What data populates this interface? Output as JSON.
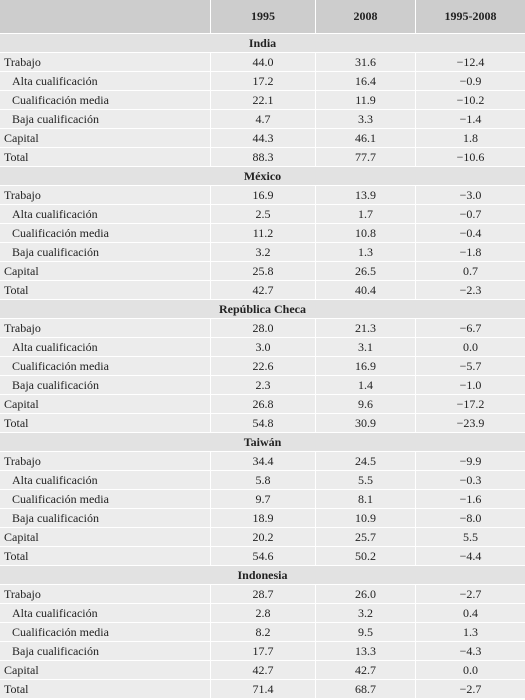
{
  "table": {
    "columns": [
      "1995",
      "2008",
      "1995-2008"
    ],
    "sections": [
      {
        "title": "India",
        "rows": [
          {
            "label": "Trabajo",
            "values": [
              "44.0",
              "31.6",
              "−12.4"
            ]
          },
          {
            "label": "Alta cualificación",
            "values": [
              "17.2",
              "16.4",
              "−0.9"
            ]
          },
          {
            "label": "Cualificación media",
            "values": [
              "22.1",
              "11.9",
              "−10.2"
            ]
          },
          {
            "label": "Baja cualificación",
            "values": [
              "4.7",
              "3.3",
              "−1.4"
            ]
          },
          {
            "label": "Capital",
            "values": [
              "44.3",
              "46.1",
              "1.8"
            ]
          },
          {
            "label": "Total",
            "values": [
              "88.3",
              "77.7",
              "−10.6"
            ]
          }
        ]
      },
      {
        "title": "México",
        "rows": [
          {
            "label": "Trabajo",
            "values": [
              "16.9",
              "13.9",
              "−3.0"
            ]
          },
          {
            "label": "Alta cualificación",
            "values": [
              "2.5",
              "1.7",
              "−0.7"
            ]
          },
          {
            "label": "Cualificación media",
            "values": [
              "11.2",
              "10.8",
              "−0.4"
            ]
          },
          {
            "label": "Baja cualificación",
            "values": [
              "3.2",
              "1.3",
              "−1.8"
            ]
          },
          {
            "label": "Capital",
            "values": [
              "25.8",
              "26.5",
              "0.7"
            ]
          },
          {
            "label": "Total",
            "values": [
              "42.7",
              "40.4",
              "−2.3"
            ]
          }
        ]
      },
      {
        "title": "República Checa",
        "rows": [
          {
            "label": "Trabajo",
            "values": [
              "28.0",
              "21.3",
              "−6.7"
            ]
          },
          {
            "label": "Alta cualificación",
            "values": [
              "3.0",
              "3.1",
              "0.0"
            ]
          },
          {
            "label": "Cualificación media",
            "values": [
              "22.6",
              "16.9",
              "−5.7"
            ]
          },
          {
            "label": "Baja cualificación",
            "values": [
              "2.3",
              "1.4",
              "−1.0"
            ]
          },
          {
            "label": "Capital",
            "values": [
              "26.8",
              "9.6",
              "−17.2"
            ]
          },
          {
            "label": "Total",
            "values": [
              "54.8",
              "30.9",
              "−23.9"
            ]
          }
        ]
      },
      {
        "title": "Taiwán",
        "rows": [
          {
            "label": "Trabajo",
            "values": [
              "34.4",
              "24.5",
              "−9.9"
            ]
          },
          {
            "label": "Alta cualificación",
            "values": [
              "5.8",
              "5.5",
              "−0.3"
            ]
          },
          {
            "label": "Cualificación media",
            "values": [
              "9.7",
              "8.1",
              "−1.6"
            ]
          },
          {
            "label": "Baja cualificación",
            "values": [
              "18.9",
              "10.9",
              "−8.0"
            ]
          },
          {
            "label": "Capital",
            "values": [
              "20.2",
              "25.7",
              "5.5"
            ]
          },
          {
            "label": "Total",
            "values": [
              "54.6",
              "50.2",
              "−4.4"
            ]
          }
        ]
      },
      {
        "title": "Indonesia",
        "rows": [
          {
            "label": "Trabajo",
            "values": [
              "28.7",
              "26.0",
              "−2.7"
            ]
          },
          {
            "label": "Alta cualificación",
            "values": [
              "2.8",
              "3.2",
              "0.4"
            ]
          },
          {
            "label": "Cualificación media",
            "values": [
              "8.2",
              "9.5",
              "1.3"
            ]
          },
          {
            "label": "Baja cualificación",
            "values": [
              "17.7",
              "13.3",
              "−4.3"
            ]
          },
          {
            "label": "Capital",
            "values": [
              "42.7",
              "42.7",
              "0.0"
            ]
          },
          {
            "label": "Total",
            "values": [
              "71.4",
              "68.7",
              "−2.7"
            ]
          }
        ]
      }
    ]
  }
}
